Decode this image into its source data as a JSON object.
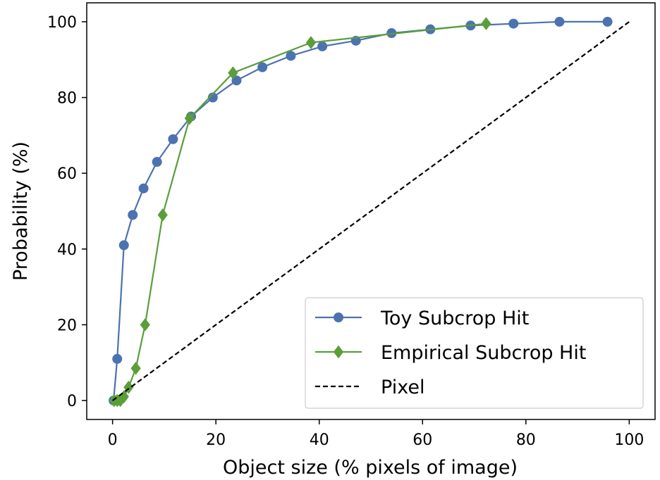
{
  "chart_data": {
    "type": "line",
    "xlabel": "Object size (% pixels of image)",
    "ylabel": "Probability (%)",
    "xlim": [
      -5,
      105
    ],
    "ylim": [
      -5,
      105
    ],
    "x_ticks": [
      0,
      20,
      40,
      60,
      80,
      100
    ],
    "y_ticks": [
      0,
      20,
      40,
      60,
      80,
      100
    ],
    "grid": false,
    "legend_position": "lower-right",
    "series": [
      {
        "name": "Toy Subcrop Hit",
        "color": "#4c72b0",
        "marker": "circle",
        "line_style": "solid",
        "x": [
          0.2,
          0.9,
          2.2,
          3.9,
          6.0,
          8.6,
          11.7,
          15.2,
          19.4,
          24.0,
          29.0,
          34.5,
          40.6,
          47.1,
          54.0,
          61.5,
          69.3,
          77.6,
          86.5,
          95.8
        ],
        "y": [
          0,
          11,
          41,
          49,
          56,
          63,
          69,
          75,
          80,
          84.5,
          88,
          91,
          93.5,
          95,
          97,
          98,
          99,
          99.5,
          100,
          100
        ]
      },
      {
        "name": "Empirical Subcrop Hit",
        "color": "#5a9e3a",
        "marker": "diamond",
        "line_style": "solid",
        "x": [
          0.3,
          0.9,
          1.5,
          2.2,
          3.1,
          4.5,
          6.3,
          9.7,
          14.9,
          23.3,
          38.4,
          72.3
        ],
        "y": [
          0,
          0,
          0,
          1,
          3.5,
          8.5,
          20,
          49,
          74.5,
          86.5,
          94.5,
          99.5
        ]
      },
      {
        "name": "Pixel",
        "color": "#000000",
        "marker": "none",
        "line_style": "dashed",
        "x": [
          0,
          100
        ],
        "y": [
          0,
          100
        ]
      }
    ]
  }
}
